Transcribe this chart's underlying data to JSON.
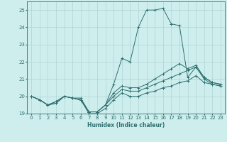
{
  "xlabel": "Humidex (Indice chaleur)",
  "xlim": [
    -0.5,
    23.5
  ],
  "ylim": [
    19,
    25.5
  ],
  "yticks": [
    19,
    20,
    21,
    22,
    23,
    24,
    25
  ],
  "xticks": [
    0,
    1,
    2,
    3,
    4,
    5,
    6,
    7,
    8,
    9,
    10,
    11,
    12,
    13,
    14,
    15,
    16,
    17,
    18,
    19,
    20,
    21,
    22,
    23
  ],
  "background_color": "#cdeeed",
  "grid_color": "#aed4d4",
  "line_color": "#2e6e6e",
  "series": [
    [
      20.0,
      19.8,
      19.5,
      19.6,
      20.0,
      19.9,
      19.8,
      19.1,
      19.1,
      19.5,
      20.7,
      22.2,
      22.0,
      24.0,
      25.0,
      25.0,
      25.1,
      24.2,
      24.1,
      21.1,
      21.7,
      21.1,
      20.8,
      20.7
    ],
    [
      20.0,
      19.8,
      19.5,
      19.7,
      20.0,
      19.9,
      19.9,
      19.1,
      19.1,
      19.5,
      20.2,
      20.6,
      20.5,
      20.5,
      20.7,
      21.0,
      21.3,
      21.6,
      21.9,
      21.6,
      21.8,
      21.1,
      20.8,
      20.7
    ],
    [
      20.0,
      19.8,
      19.5,
      19.7,
      20.0,
      19.9,
      19.8,
      19.1,
      19.1,
      19.5,
      20.0,
      20.4,
      20.3,
      20.3,
      20.5,
      20.7,
      20.9,
      21.1,
      21.3,
      21.5,
      21.7,
      21.0,
      20.7,
      20.6
    ],
    [
      20.0,
      19.8,
      19.5,
      19.6,
      20.0,
      19.9,
      19.8,
      19.0,
      19.0,
      19.3,
      19.8,
      20.2,
      20.0,
      20.0,
      20.2,
      20.3,
      20.5,
      20.6,
      20.8,
      20.9,
      21.2,
      20.8,
      20.7,
      20.6
    ]
  ],
  "figsize": [
    3.2,
    2.0
  ],
  "dpi": 100
}
